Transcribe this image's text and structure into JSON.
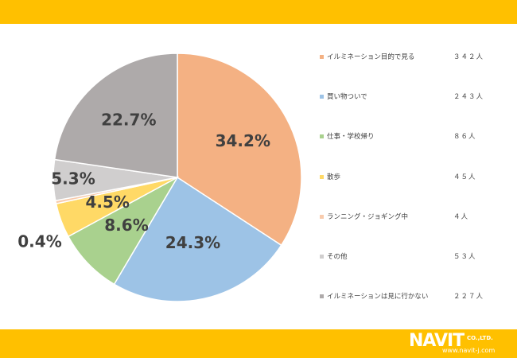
{
  "chart_data": {
    "type": "pie",
    "categories": [
      "イルミネーション目的で見る",
      "買い物ついで",
      "仕事・学校帰り",
      "散歩",
      "ランニング・ジョギング中",
      "その他",
      "イルミネーションは見に行かない"
    ],
    "counts": [
      "３４２人",
      "２４３人",
      "８６人",
      "４５人",
      "４人",
      "５３人",
      "２２７人"
    ],
    "values": [
      34.2,
      24.3,
      8.6,
      4.5,
      0.4,
      5.3,
      22.7
    ],
    "labels": [
      "34.2%",
      "24.3%",
      "8.6%",
      "4.5%",
      "0.4%",
      "5.3%",
      "22.7%"
    ],
    "colors": [
      "#F4B183",
      "#9DC3E6",
      "#A9D18E",
      "#FFD966",
      "#F8CBAD",
      "#D0CECE",
      "#AEAAAA"
    ],
    "legend_position": "right"
  },
  "brand": {
    "logo_main": "NAVIT",
    "logo_corp": "CO.,LTD.",
    "logo_url": "www.navit-j.com",
    "band_color": "#FFC000"
  }
}
